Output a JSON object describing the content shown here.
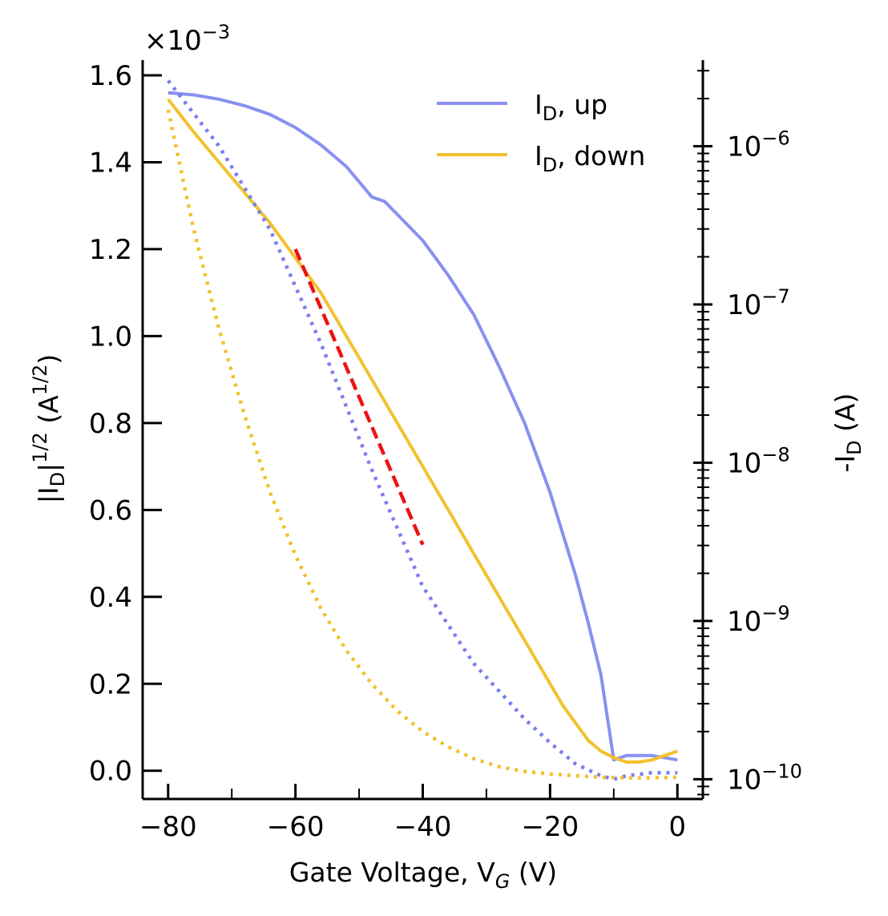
{
  "chart_data": {
    "type": "line",
    "xlabel": {
      "main": "Gate Voltage, V",
      "sub": "G",
      "unit": " (V)"
    },
    "ylabel_left": {
      "pre": "|I",
      "sub": "D",
      "mid": "|",
      "sup": "1/2",
      "unit_pre": " (A",
      "unit_sup": "1/2",
      "unit_post": ")"
    },
    "ylabel_right": {
      "pre": "-I",
      "sub": "D",
      "unit": " (A)"
    },
    "x_ticks": [
      -80,
      -60,
      -40,
      -20,
      0
    ],
    "x_tick_labels": [
      "−80",
      "−60",
      "−40",
      "−20",
      "0"
    ],
    "xlim": [
      -84,
      4
    ],
    "y_left_ticks": [
      0.0,
      0.2,
      0.4,
      0.6,
      0.8,
      1.0,
      1.2,
      1.4,
      1.6
    ],
    "y_left_tick_labels": [
      "0.0",
      "0.2",
      "0.4",
      "0.6",
      "0.8",
      "1.0",
      "1.2",
      "1.4",
      "1.6"
    ],
    "y_left_lim": [
      -0.065,
      1.635
    ],
    "y_left_multiplier": {
      "base": "×10",
      "exp": "−3"
    },
    "y_right_scale": "log",
    "y_right_ticks": [
      1e-10,
      1e-09,
      1e-08,
      1e-07,
      1e-06
    ],
    "y_right_tick_labels": [
      {
        "base": "10",
        "exp": "−10"
      },
      {
        "base": "10",
        "exp": "−9"
      },
      {
        "base": "10",
        "exp": "−8"
      },
      {
        "base": "10",
        "exp": "−7"
      },
      {
        "base": "10",
        "exp": "−6"
      }
    ],
    "y_right_lim": [
      7.5e-11,
      3.5e-06
    ],
    "legend": {
      "position": "top-right",
      "entries": [
        {
          "pre": "I",
          "sub": "D",
          "post": ", up",
          "color": "#8890f0"
        },
        {
          "pre": "I",
          "sub": "D",
          "post": ", down",
          "color": "#f2c12e"
        }
      ]
    },
    "series": [
      {
        "axis": "left",
        "style": "solid",
        "color": "#8890f0",
        "x": [
          -80,
          -76,
          -72,
          -68,
          -64,
          -60,
          -56,
          -52,
          -48,
          -46,
          -44,
          -40,
          -36,
          -32,
          -28,
          -24,
          -20,
          -16,
          -14,
          -12,
          -10,
          -9,
          -8,
          -4,
          0
        ],
        "y": [
          1.56,
          1.555,
          1.545,
          1.53,
          1.51,
          1.48,
          1.44,
          1.39,
          1.32,
          1.31,
          1.28,
          1.22,
          1.14,
          1.05,
          0.93,
          0.8,
          0.64,
          0.45,
          0.34,
          0.22,
          0.025,
          0.03,
          0.035,
          0.035,
          0.025
        ]
      },
      {
        "axis": "left",
        "style": "solid",
        "color": "#f2c12e",
        "x": [
          -80,
          -76,
          -72,
          -68,
          -64,
          -60,
          -58,
          -56,
          -52,
          -48,
          -44,
          -40,
          -36,
          -32,
          -28,
          -24,
          -20,
          -18,
          -16,
          -14,
          -12,
          -10,
          -8,
          -6,
          -4,
          -2,
          0
        ],
        "y": [
          1.545,
          1.47,
          1.4,
          1.33,
          1.26,
          1.18,
          1.14,
          1.1,
          1.0,
          0.9,
          0.8,
          0.7,
          0.6,
          0.5,
          0.4,
          0.3,
          0.2,
          0.15,
          0.11,
          0.07,
          0.045,
          0.03,
          0.02,
          0.02,
          0.025,
          0.035,
          0.045
        ]
      },
      {
        "axis": "right",
        "style": "dotted",
        "color": "#7880f0",
        "x": [
          -80,
          -72,
          -64,
          -56,
          -48,
          -40,
          -32,
          -24,
          -20,
          -16,
          -12,
          -10,
          -8,
          -4,
          0
        ],
        "y": [
          2.6e-06,
          1e-06,
          2.98e-07,
          5.66e-08,
          9e-09,
          1.65e-09,
          5.4e-10,
          2.4e-10,
          1.7e-10,
          1.25e-10,
          1.05e-10,
          1e-10,
          1.05e-10,
          1.1e-10,
          1.1e-10
        ]
      },
      {
        "axis": "right",
        "style": "dotted",
        "color": "#f2c12e",
        "x": [
          -80,
          -76,
          -72,
          -68,
          -64,
          -60,
          -56,
          -52,
          -48,
          -44,
          -40,
          -36,
          -32,
          -28,
          -24,
          -20,
          -16,
          -12,
          -8,
          -4,
          0
        ],
        "y": [
          1.7e-06,
          3e-07,
          7e-08,
          2e-08,
          6.5e-09,
          2.6e-09,
          1.2e-09,
          6.5e-10,
          4e-10,
          2.7e-10,
          2e-10,
          1.6e-10,
          1.35e-10,
          1.2e-10,
          1.12e-10,
          1.08e-10,
          1.05e-10,
          1.03e-10,
          1.02e-10,
          1.02e-10,
          1.03e-10
        ]
      },
      {
        "axis": "left",
        "style": "dashed",
        "color": "#ee1111",
        "x": [
          -60,
          -40
        ],
        "y": [
          1.2,
          0.52
        ]
      }
    ]
  }
}
